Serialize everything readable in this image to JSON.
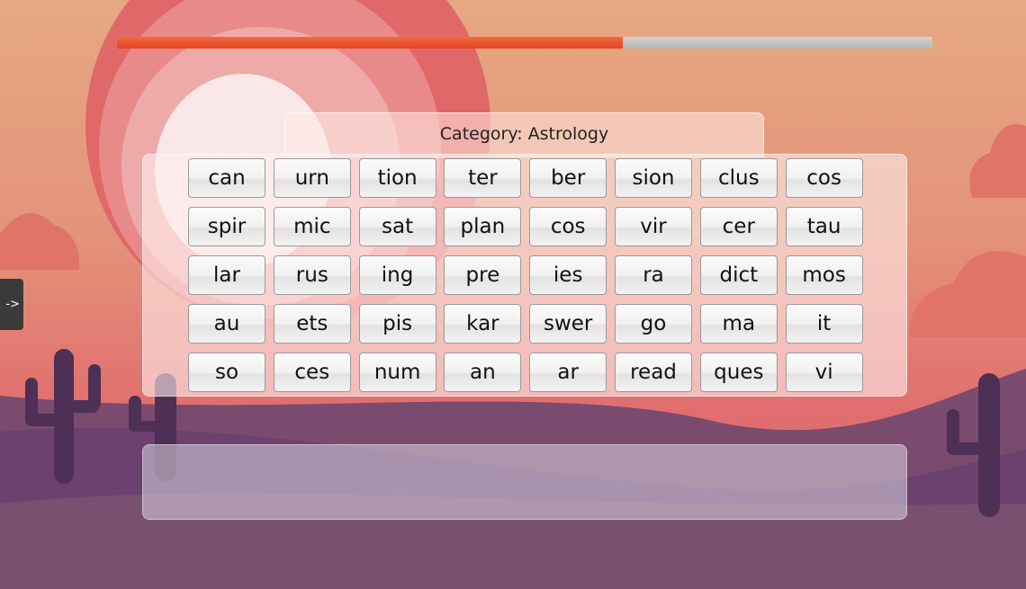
{
  "progress": {
    "value": 0.62,
    "fill_color": "#e84a28",
    "track_color": "#c4c4c4"
  },
  "category": {
    "label": "Category: Astrology"
  },
  "tiles": [
    "can",
    "urn",
    "tion",
    "ter",
    "ber",
    "sion",
    "clus",
    "cos",
    "spir",
    "mic",
    "sat",
    "plan",
    "cos",
    "vir",
    "cer",
    "tau",
    "lar",
    "rus",
    "ing",
    "pre",
    "ies",
    "ra",
    "dict",
    "mos",
    "au",
    "ets",
    "pis",
    "kar",
    "swer",
    "go",
    "ma",
    "it",
    "so",
    "ces",
    "num",
    "an",
    "ar",
    "read",
    "ques",
    "vi"
  ],
  "side_tab": {
    "label": "->",
    "icon": "arrow-right-icon"
  },
  "answer_area": {
    "value": ""
  }
}
